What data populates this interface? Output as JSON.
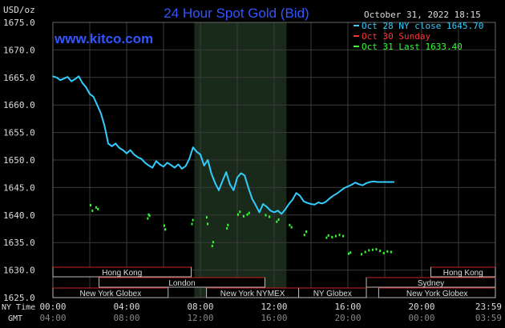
{
  "header": {
    "title": "24 Hour Spot Gold (Bid)",
    "date": "October 31, 2022 18:15",
    "unit": "USD/oz",
    "site": "www.kitco.com"
  },
  "legend": [
    {
      "text": "Oct 28 NY close 1645.70",
      "color": "#33ccff"
    },
    {
      "text": "Oct 30 Sunday",
      "color": "#ff3333"
    },
    {
      "text": "Oct 31 Last 1633.40",
      "color": "#33ff33"
    }
  ],
  "footer": {
    "ny_time_label": "NY Time",
    "gmt_label": "GMT"
  },
  "sessions": [
    {
      "label": "Hong Kong",
      "start": 0,
      "end": 7.5,
      "row": 1
    },
    {
      "label": "Hong Kong",
      "start": 20.5,
      "end": 24,
      "row": 1
    },
    {
      "label": "London",
      "start": 2.5,
      "end": 11.5,
      "row": 2
    },
    {
      "label": "Sydney",
      "start": 17,
      "end": 24,
      "row": 2
    },
    {
      "label": "New York Globex",
      "start": 0,
      "end": 6.25,
      "row": 3
    },
    {
      "label": "New York NYMEX",
      "start": 8.33,
      "end": 13.33,
      "row": 3
    },
    {
      "label": "NY Globex",
      "start": 13.33,
      "end": 17,
      "row": 3
    },
    {
      "label": "New York Globex",
      "start": 17.67,
      "end": 24,
      "row": 3
    }
  ],
  "colors": {
    "grid": "#3a3a3a",
    "axis_text": "#dddddd",
    "title": "#3355ff",
    "site": "#3355ff",
    "line": "#33ccff",
    "dots": "#33ff33",
    "highlight": "#1a2a1a",
    "session_border": "#cc2222"
  },
  "chart_data": {
    "type": "line",
    "xlabel": "NY Time",
    "ylabel": "USD/oz",
    "ylim": [
      1625.0,
      1675.0
    ],
    "xlim": [
      0,
      24
    ],
    "yticks": [
      "1625.0",
      "1630.0",
      "1635.0",
      "1640.0",
      "1645.0",
      "1650.0",
      "1655.0",
      "1660.0",
      "1665.0",
      "1670.0",
      "1675.0"
    ],
    "x_ticks": [
      {
        "ny": "00:00",
        "gmt": "04:00"
      },
      {
        "ny": "04:00",
        "gmt": "08:00"
      },
      {
        "ny": "08:00",
        "gmt": "12:00"
      },
      {
        "ny": "12:00",
        "gmt": "16:00"
      },
      {
        "ny": "16:00",
        "gmt": "20:00"
      },
      {
        "ny": "20:00",
        "gmt": "00:00"
      },
      {
        "ny": "23:59",
        "gmt": "03:59"
      }
    ],
    "highlight_range": [
      7.67,
      12.67
    ],
    "series": [
      {
        "name": "Oct 31",
        "x": [
          0,
          0.2,
          0.4,
          0.6,
          0.8,
          1.0,
          1.2,
          1.4,
          1.6,
          1.8,
          2.0,
          2.2,
          2.4,
          2.6,
          2.8,
          3.0,
          3.2,
          3.4,
          3.6,
          3.8,
          4.0,
          4.2,
          4.4,
          4.6,
          4.8,
          5.0,
          5.2,
          5.4,
          5.6,
          5.8,
          6.0,
          6.2,
          6.4,
          6.6,
          6.8,
          7.0,
          7.2,
          7.4,
          7.6,
          7.8,
          8.0,
          8.2,
          8.4,
          8.6,
          8.8,
          9.0,
          9.2,
          9.4,
          9.6,
          9.8,
          10.0,
          10.2,
          10.4,
          10.6,
          10.8,
          11.0,
          11.2,
          11.4,
          11.6,
          11.8,
          12.0,
          12.2,
          12.4,
          12.6,
          12.8,
          13.0,
          13.2,
          13.4,
          13.6,
          13.8,
          14.0,
          14.2,
          14.4,
          14.6,
          14.8,
          15.0,
          15.2,
          15.4,
          15.6,
          15.8,
          16.0,
          16.2,
          16.4,
          16.6,
          16.8,
          17.0,
          17.2,
          17.4,
          17.6,
          17.8,
          18.0,
          18.2,
          18.4,
          18.5
        ],
        "values": [
          1665.2,
          1665.0,
          1664.5,
          1664.8,
          1665.1,
          1664.3,
          1664.7,
          1665.2,
          1664.0,
          1663.2,
          1662.0,
          1661.5,
          1660.0,
          1658.5,
          1656.2,
          1653.0,
          1652.5,
          1653.0,
          1652.2,
          1651.8,
          1651.2,
          1651.8,
          1651.0,
          1650.5,
          1650.2,
          1649.5,
          1649.0,
          1648.6,
          1649.8,
          1649.2,
          1648.8,
          1649.5,
          1649.1,
          1648.6,
          1649.2,
          1648.4,
          1648.9,
          1650.2,
          1652.3,
          1651.5,
          1651.0,
          1649.0,
          1650.0,
          1647.5,
          1645.8,
          1644.5,
          1646.2,
          1647.8,
          1645.6,
          1644.5,
          1646.8,
          1647.6,
          1647.2,
          1645.0,
          1643.0,
          1641.8,
          1640.5,
          1642.0,
          1641.5,
          1640.8,
          1640.5,
          1640.8,
          1640.2,
          1641.0,
          1642.0,
          1642.8,
          1644.0,
          1643.5,
          1642.5,
          1642.2,
          1642.0,
          1641.9,
          1642.3,
          1642.1,
          1642.4,
          1643.0,
          1643.5,
          1643.9,
          1644.4,
          1644.9,
          1645.2,
          1645.5,
          1645.9,
          1645.6,
          1645.4,
          1645.8,
          1646.0,
          1646.1,
          1646.0,
          1646.0,
          1646.0,
          1646.0,
          1646.0,
          1646.0
        ]
      }
    ],
    "prior_day_dots": [
      [
        2.0,
        1642.0
      ],
      [
        2.1,
        1641.0
      ],
      [
        2.3,
        1641.6
      ],
      [
        2.4,
        1641.3
      ],
      [
        5.1,
        1639.6
      ],
      [
        5.15,
        1640.3
      ],
      [
        5.2,
        1640.1
      ],
      [
        6.0,
        1638.3
      ],
      [
        6.05,
        1637.6
      ],
      [
        7.5,
        1638.6
      ],
      [
        7.55,
        1639.3
      ],
      [
        8.3,
        1639.8
      ],
      [
        8.35,
        1638.6
      ],
      [
        9.4,
        1637.8
      ],
      [
        9.45,
        1638.4
      ],
      [
        8.6,
        1634.6
      ],
      [
        8.65,
        1635.3
      ],
      [
        10.0,
        1640.3
      ],
      [
        10.1,
        1640.8
      ],
      [
        10.3,
        1640.0
      ],
      [
        10.5,
        1640.3
      ],
      [
        10.6,
        1640.6
      ],
      [
        11.5,
        1640.2
      ],
      [
        11.7,
        1639.9
      ],
      [
        12.1,
        1639.0
      ],
      [
        12.2,
        1639.4
      ],
      [
        12.8,
        1638.4
      ],
      [
        12.9,
        1638.0
      ],
      [
        13.6,
        1636.6
      ],
      [
        13.7,
        1637.2
      ],
      [
        14.8,
        1636.1
      ],
      [
        14.9,
        1636.5
      ],
      [
        15.1,
        1636.2
      ],
      [
        15.3,
        1636.4
      ],
      [
        15.5,
        1636.6
      ],
      [
        15.7,
        1636.4
      ],
      [
        16.0,
        1633.2
      ],
      [
        16.1,
        1633.4
      ],
      [
        16.7,
        1633.1
      ],
      [
        16.9,
        1633.5
      ],
      [
        17.1,
        1633.8
      ],
      [
        17.3,
        1633.9
      ],
      [
        17.5,
        1634.0
      ],
      [
        17.7,
        1633.7
      ],
      [
        17.9,
        1633.3
      ],
      [
        18.1,
        1633.6
      ],
      [
        18.3,
        1633.5
      ]
    ]
  }
}
